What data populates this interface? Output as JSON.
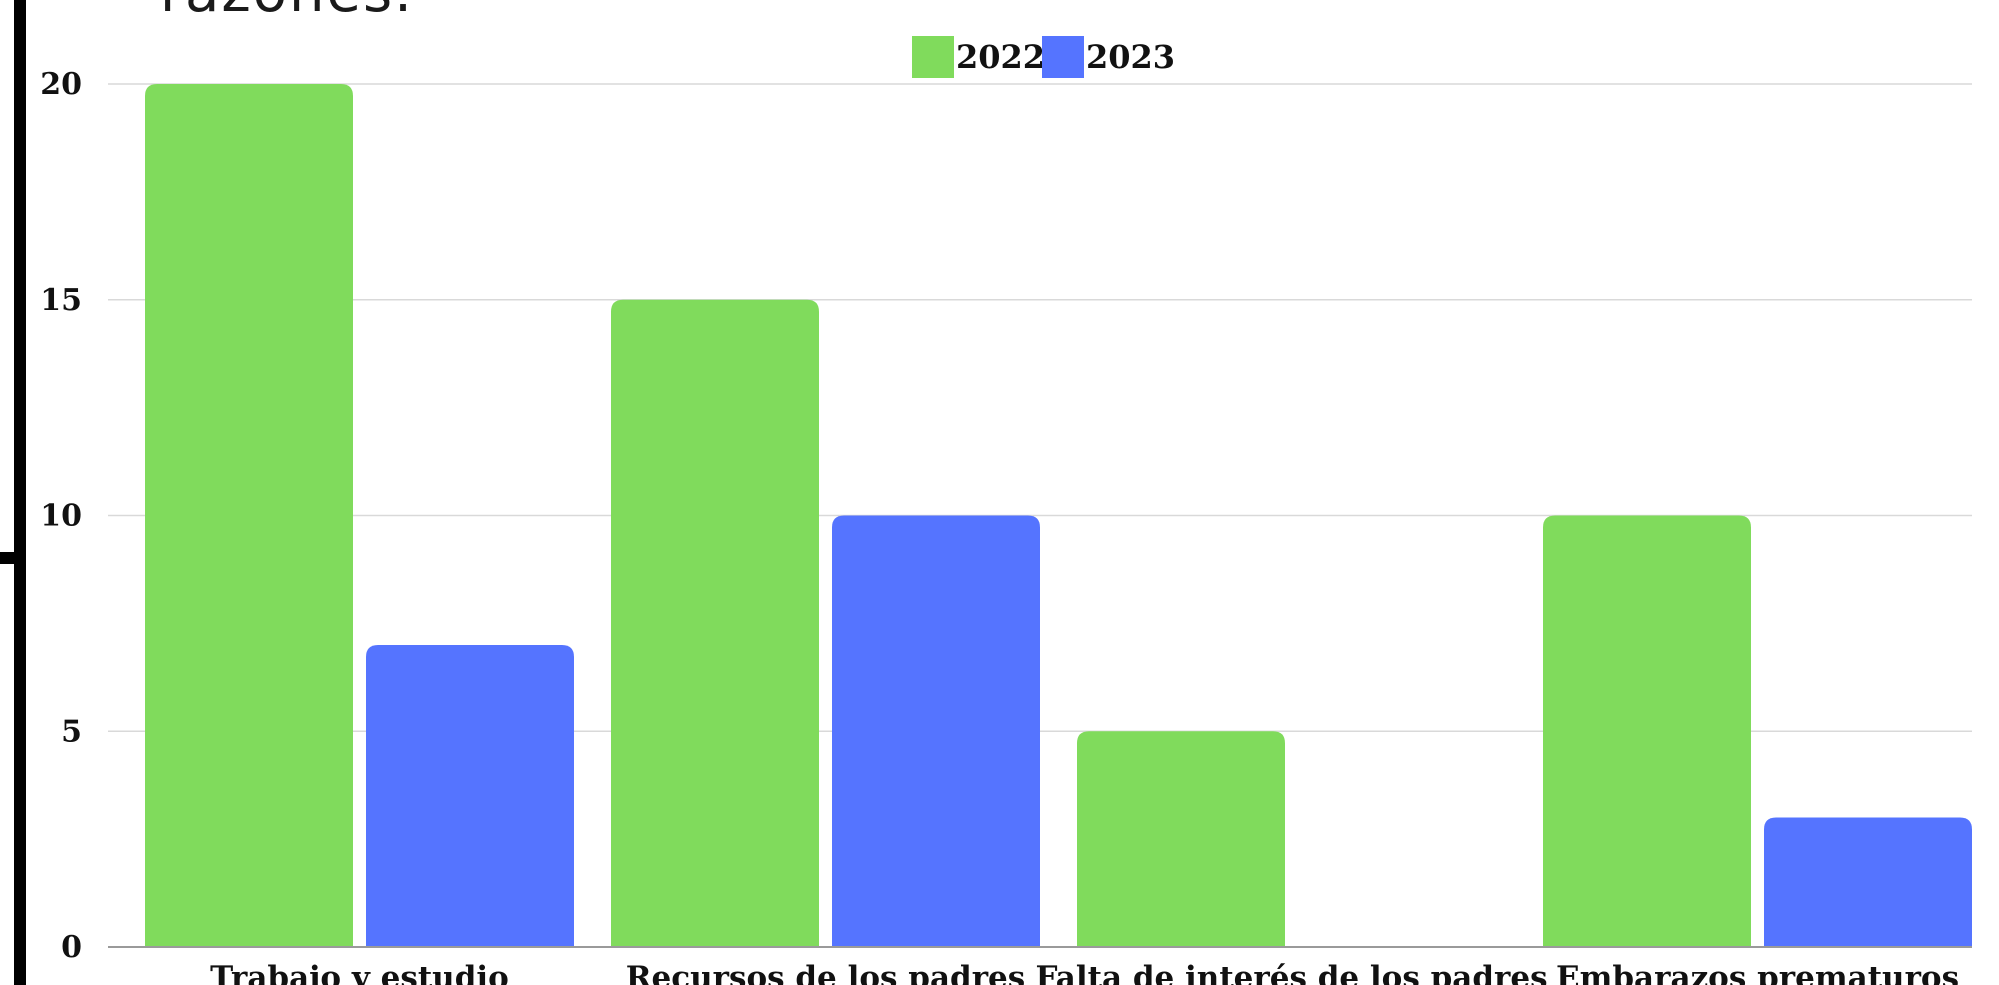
{
  "heading_fragment": "razones.",
  "chart_data": {
    "type": "bar",
    "categories": [
      "Trabajo y estudio",
      "Recursos de los padres",
      "Falta de interés de los padres",
      "Embarazos prematuros"
    ],
    "series": [
      {
        "name": "2022",
        "values": [
          20,
          15,
          5,
          10
        ],
        "color": "#80db5c"
      },
      {
        "name": "2023",
        "values": [
          7,
          10,
          0,
          3
        ],
        "color": "#5574ff"
      }
    ],
    "yticks": [
      "0",
      "5",
      "10",
      "15",
      "20"
    ],
    "ylim": [
      0,
      20
    ],
    "grid": true,
    "legend": "top-center",
    "title": "",
    "xlabel": "",
    "ylabel": ""
  }
}
